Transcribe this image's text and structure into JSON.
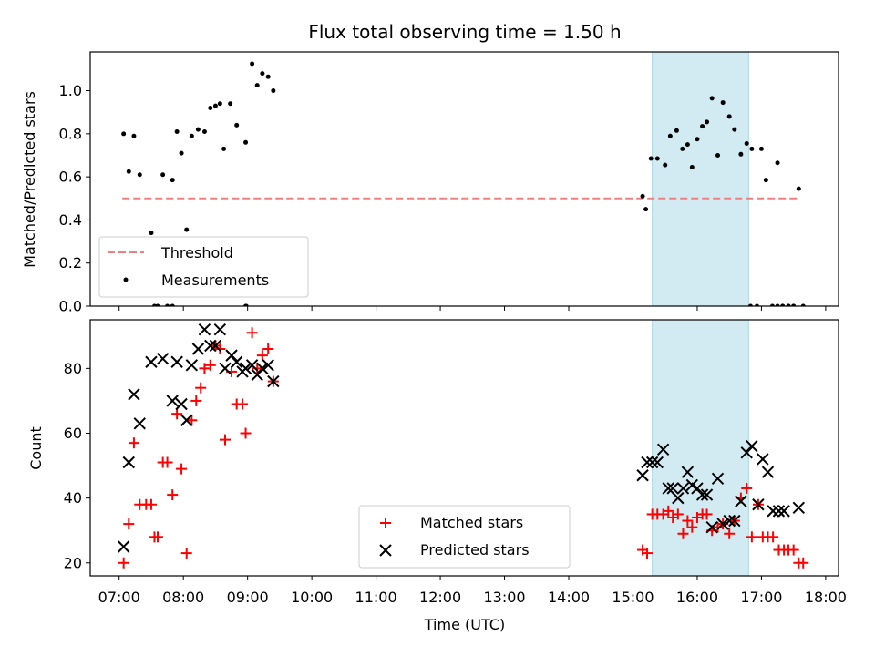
{
  "chart_data": [
    {
      "type": "scatter",
      "title": "Flux total observing time = 1.50 h",
      "ylabel": "Matched/Predicted stars",
      "xlabel": "",
      "ylim": [
        0,
        1.18
      ],
      "xlim": [
        6.55,
        18.2
      ],
      "yticks": [
        0.0,
        0.2,
        0.4,
        0.6,
        0.8,
        1.0
      ],
      "ytick_labels": [
        "0.0",
        "0.2",
        "0.4",
        "0.6",
        "0.8",
        "1.0"
      ],
      "grid": false,
      "legend_position": "lower-left",
      "shaded_region": {
        "x0": 15.3,
        "x1": 16.8,
        "color": "#add8e6"
      },
      "series": [
        {
          "name": "Threshold",
          "kind": "dashed-line",
          "color": "#f08080",
          "x": [
            7.05,
            17.6
          ],
          "y": [
            0.5,
            0.5
          ]
        },
        {
          "name": "Measurements",
          "kind": "dots",
          "color": "#000000",
          "x": [
            7.07,
            7.15,
            7.23,
            7.32,
            7.5,
            7.55,
            7.6,
            7.68,
            7.75,
            7.83,
            7.9,
            7.97,
            8.05,
            8.13,
            8.23,
            8.33,
            8.42,
            8.5,
            8.57,
            8.63,
            8.73,
            8.83,
            8.97,
            9.07,
            9.15,
            9.23,
            9.32,
            9.4,
            8.97,
            8.98,
            7.83,
            15.15,
            15.2,
            15.28,
            15.38,
            15.5,
            15.58,
            15.68,
            15.77,
            15.85,
            15.92,
            16.0,
            16.08,
            16.15,
            16.23,
            16.32,
            16.4,
            16.5,
            16.58,
            16.68,
            16.77,
            16.85,
            16.93,
            17.0,
            17.07,
            17.17,
            17.25,
            17.33,
            17.42,
            17.5,
            17.58,
            16.83,
            17.25,
            17.33,
            17.42,
            17.5,
            17.65
          ],
          "y": [
            0.8,
            0.625,
            0.79,
            0.61,
            0.34,
            0.0,
            0.0,
            0.61,
            0.0,
            0.585,
            0.81,
            0.71,
            0.355,
            0.79,
            0.82,
            0.81,
            0.92,
            0.93,
            0.94,
            0.73,
            0.94,
            0.84,
            0.76,
            1.125,
            1.025,
            1.08,
            1.065,
            1.0,
            0.0,
            0.0,
            0.0,
            0.51,
            0.45,
            0.685,
            0.685,
            0.655,
            0.79,
            0.815,
            0.73,
            0.75,
            0.645,
            0.775,
            0.835,
            0.855,
            0.965,
            0.7,
            0.945,
            0.88,
            0.82,
            0.705,
            0.755,
            0.73,
            0.0,
            0.73,
            0.585,
            0.0,
            0.665,
            0.0,
            0.0,
            0.0,
            0.545,
            0.0,
            0.0,
            0.0,
            0.0,
            0.0,
            0.0
          ]
        }
      ]
    },
    {
      "type": "scatter",
      "title": "",
      "ylabel": "Count",
      "xlabel": "Time (UTC)",
      "ylim": [
        16,
        95
      ],
      "xlim": [
        6.55,
        18.2
      ],
      "yticks": [
        20,
        40,
        60,
        80
      ],
      "ytick_labels": [
        "20",
        "40",
        "60",
        "80"
      ],
      "xticks": [
        7,
        8,
        9,
        10,
        11,
        12,
        13,
        14,
        15,
        16,
        17,
        18
      ],
      "xtick_labels": [
        "07:00",
        "08:00",
        "09:00",
        "10:00",
        "11:00",
        "12:00",
        "13:00",
        "14:00",
        "15:00",
        "16:00",
        "17:00",
        "18:00"
      ],
      "grid": false,
      "legend_position": "lower-center",
      "shaded_region": {
        "x0": 15.3,
        "x1": 16.8,
        "color": "#add8e6"
      },
      "series": [
        {
          "name": "Matched stars",
          "kind": "plus",
          "color": "#ff0000",
          "x": [
            7.07,
            7.15,
            7.23,
            7.32,
            7.42,
            7.5,
            7.55,
            7.6,
            7.68,
            7.75,
            7.83,
            7.9,
            7.97,
            8.05,
            8.13,
            8.2,
            8.27,
            8.33,
            8.42,
            8.5,
            8.57,
            8.65,
            8.75,
            8.83,
            8.92,
            8.97,
            9.07,
            9.15,
            9.23,
            9.32,
            9.4,
            15.15,
            15.22,
            15.3,
            15.38,
            15.47,
            15.55,
            15.62,
            15.7,
            15.78,
            15.85,
            15.92,
            16.0,
            16.08,
            16.15,
            16.23,
            16.32,
            16.4,
            16.5,
            16.58,
            16.68,
            16.77,
            16.85,
            16.95,
            17.02,
            17.1,
            17.18,
            17.27,
            17.35,
            17.42,
            17.5,
            17.58,
            17.65
          ],
          "y": [
            20,
            32,
            57,
            38,
            38,
            38,
            28,
            28,
            51,
            51,
            41,
            66,
            49,
            23,
            64,
            70,
            74,
            80,
            81,
            87,
            86,
            58,
            79,
            69,
            69,
            60,
            91,
            80,
            84,
            86,
            76,
            24,
            23,
            35,
            35,
            35,
            36,
            34,
            35,
            29,
            33,
            31,
            34,
            35,
            35,
            30,
            31,
            32,
            29,
            33,
            40,
            43,
            28,
            38,
            28,
            28,
            28,
            24,
            24,
            24,
            24,
            20,
            20
          ]
        },
        {
          "name": "Predicted stars",
          "kind": "cross",
          "color": "#000000",
          "x": [
            7.07,
            7.15,
            7.23,
            7.32,
            7.5,
            7.68,
            7.83,
            7.9,
            7.97,
            8.05,
            8.13,
            8.23,
            8.33,
            8.42,
            8.5,
            8.57,
            8.65,
            8.75,
            8.83,
            8.92,
            8.97,
            9.07,
            9.15,
            9.23,
            9.32,
            9.4,
            15.15,
            15.22,
            15.3,
            15.38,
            15.47,
            15.55,
            15.62,
            15.7,
            15.78,
            15.85,
            15.92,
            16.0,
            16.08,
            16.15,
            16.23,
            16.32,
            16.4,
            16.5,
            16.58,
            16.68,
            16.77,
            16.85,
            16.95,
            17.02,
            17.1,
            17.18,
            17.27,
            17.35,
            17.58
          ],
          "y": [
            25,
            51,
            72,
            63,
            82,
            83,
            70,
            82,
            69,
            64,
            81,
            86,
            92,
            87,
            87,
            92,
            80,
            84,
            82,
            79,
            80,
            81,
            78,
            80,
            81,
            76,
            47,
            51,
            51,
            51,
            55,
            43,
            43,
            40,
            43,
            48,
            44,
            43,
            41,
            41,
            31,
            46,
            32,
            33,
            33,
            39,
            54,
            56,
            38,
            52,
            48,
            36,
            36,
            36,
            37
          ]
        }
      ]
    }
  ]
}
